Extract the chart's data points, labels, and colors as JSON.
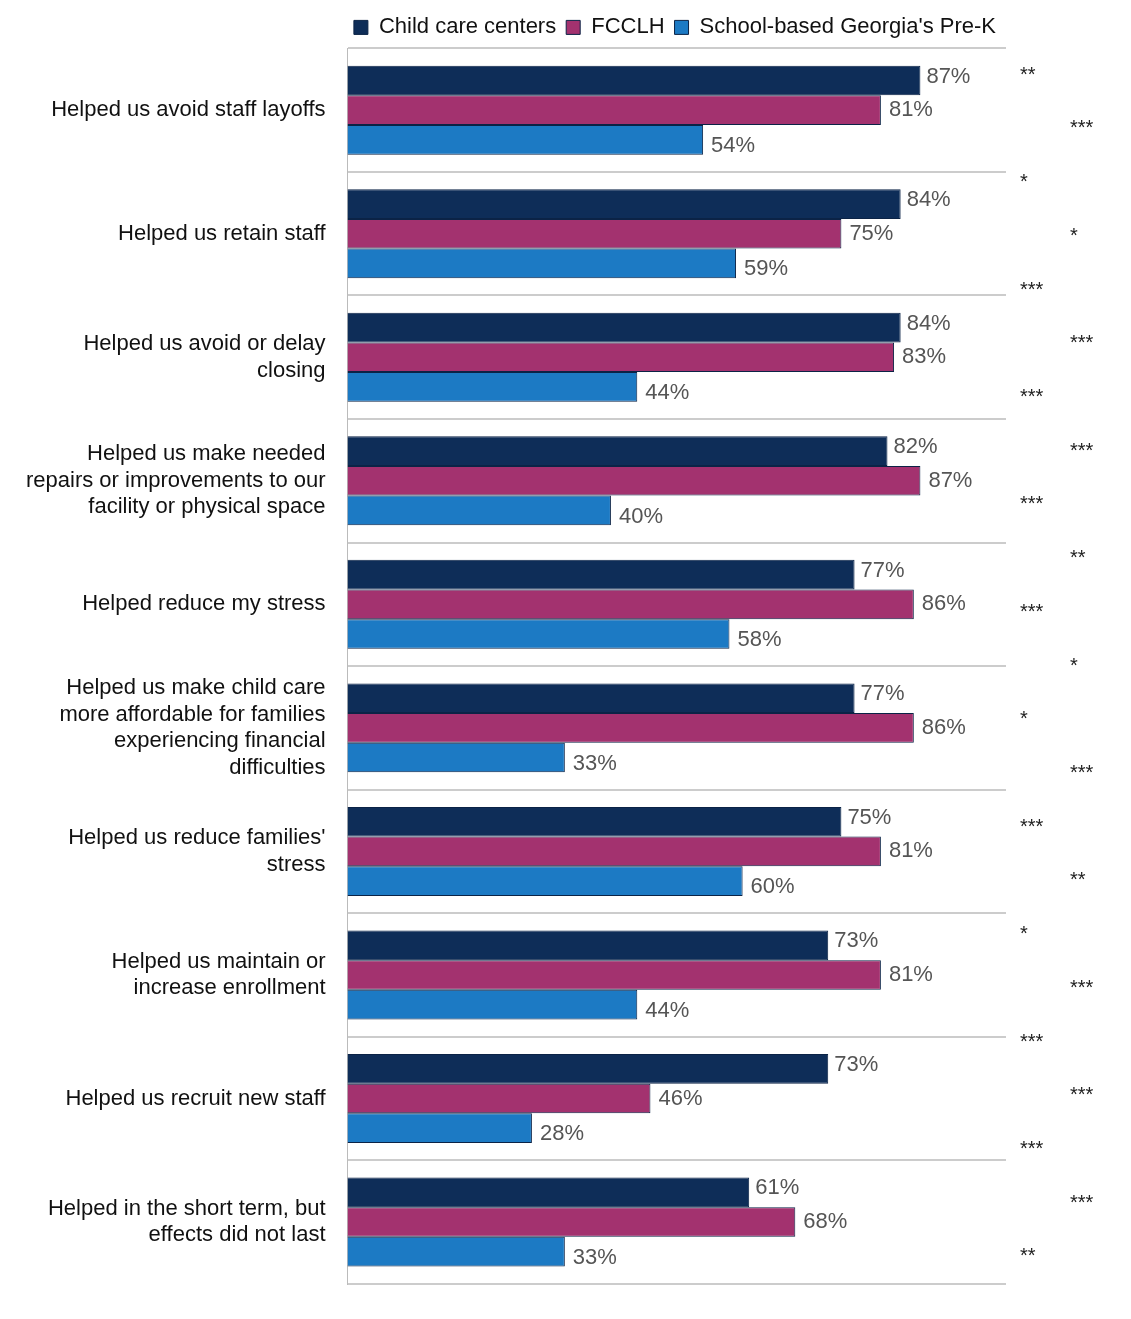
{
  "chart_data": {
    "type": "bar",
    "orientation": "horizontal",
    "legend": "top",
    "grid": "y",
    "tick_labels": "y",
    "categories": [
      "Helped us avoid staff layoffs",
      "Helped us retain staff",
      "Helped us avoid or delay closing",
      "Helped us make needed repairs or improvements to our facility or physical space",
      "Helped reduce my stress",
      "Helped us make child care more affordable for families experiencing financial difficulties",
      "Helped us reduce families' stress",
      "Helped us maintain or increase enrollment",
      "Helped us recruit new staff",
      "Helped in the short term, but effects did not last"
    ],
    "xlim": [
      0,
      100
    ],
    "series": [
      {
        "name": "Child care centers",
        "color": "#0e2d58",
        "values": [
          87,
          84,
          84,
          82,
          77,
          77,
          75,
          73,
          73,
          61
        ],
        "value_labels": [
          "87%",
          "84%",
          "84%",
          "82%",
          "77%",
          "77%",
          "75%",
          "73%",
          "73%",
          "61%"
        ]
      },
      {
        "name": "FCCLH",
        "color": "#a3326f",
        "values": [
          81,
          75,
          83,
          87,
          86,
          86,
          81,
          81,
          46,
          68
        ],
        "value_labels": [
          "81%",
          "75%",
          "83%",
          "87%",
          "86%",
          "86%",
          "81%",
          "81%",
          "46%",
          "68%"
        ]
      },
      {
        "name": "School-based Georgia's Pre-K",
        "color": "#1c7ac4",
        "values": [
          54,
          59,
          44,
          40,
          58,
          33,
          60,
          44,
          28,
          33
        ],
        "value_labels": [
          "54%",
          "59%",
          "44%",
          "40%",
          "58%",
          "33%",
          "60%",
          "44%",
          "28%",
          "33%"
        ]
      }
    ],
    "annotations": [
      "**",
      "***",
      "*",
      "*",
      "***",
      "***",
      "***",
      "***",
      "***",
      "**",
      "***",
      "*",
      "*",
      "***",
      "***",
      "**",
      "*",
      "***",
      "***",
      "***",
      "***",
      "***",
      "**"
    ]
  }
}
